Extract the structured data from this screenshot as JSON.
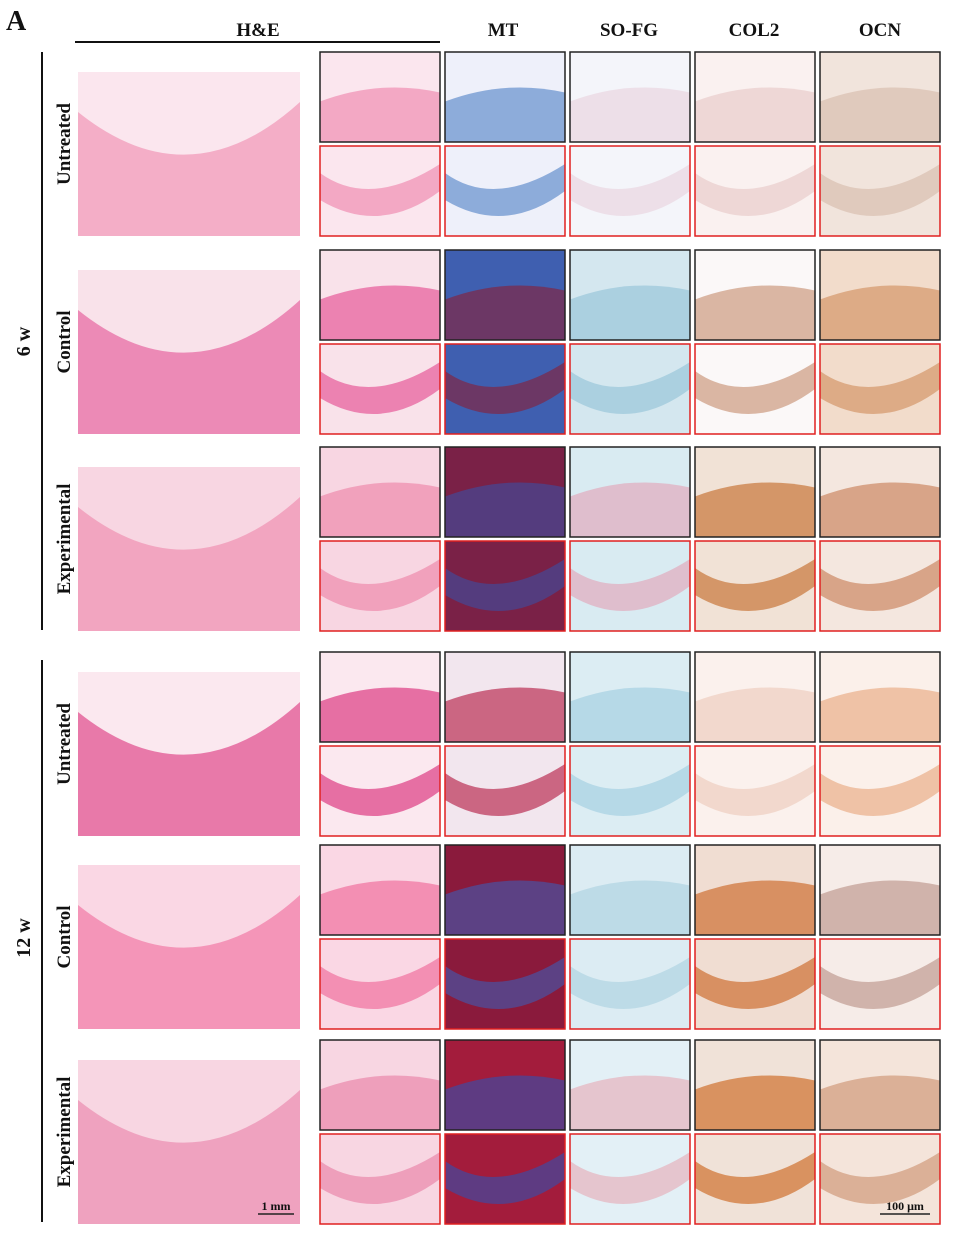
{
  "figure": {
    "panel_label": "A",
    "columns": [
      "H&E",
      "MT",
      "SO-FG",
      "COL2",
      "OCN"
    ],
    "groups": [
      {
        "label": "6 w",
        "rows": [
          "Untreated",
          "Control",
          "Experimental"
        ]
      },
      {
        "label": "12 w",
        "rows": [
          "Untreated",
          "Control",
          "Experimental"
        ]
      }
    ],
    "scale_bars": [
      "1 mm",
      "100 μm"
    ]
  }
}
